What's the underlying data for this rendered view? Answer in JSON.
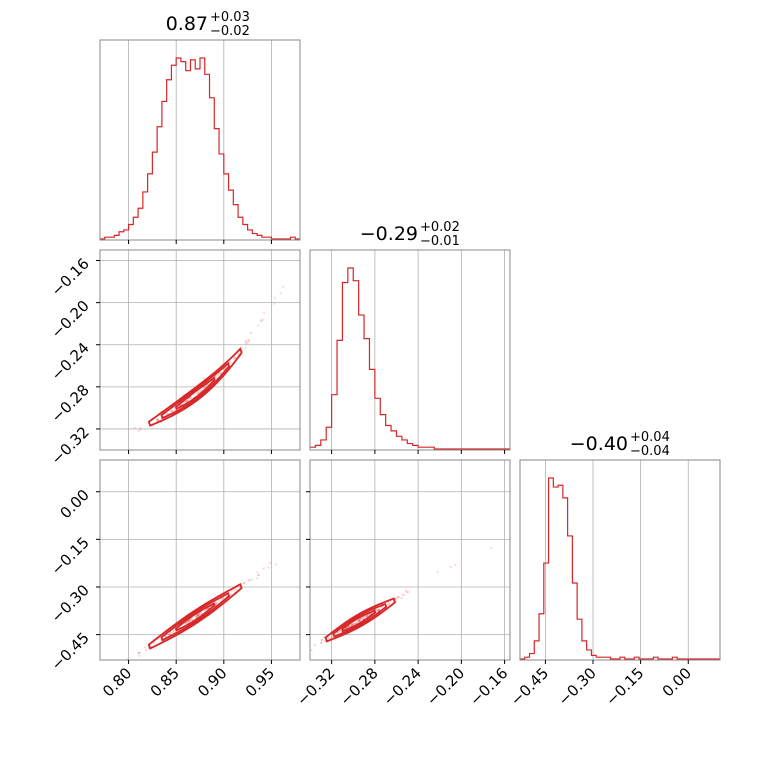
{
  "chart_data": {
    "type": "corner",
    "color": "#d62728",
    "grid": true,
    "titles": [
      {
        "value": "0.87",
        "plus": "+0.03",
        "minus": "−0.02"
      },
      {
        "value": "−0.29",
        "plus": "+0.02",
        "minus": "−0.01"
      },
      {
        "value": "−0.40",
        "plus": "+0.04",
        "minus": "−0.04"
      }
    ],
    "params": [
      {
        "range": [
          0.77,
          0.98
        ],
        "ticks": [
          0.8,
          0.85,
          0.9,
          0.95
        ],
        "tick_labels": [
          "0.80",
          "0.85",
          "0.90",
          "0.95"
        ],
        "hist_edges": [
          0.77,
          0.775,
          0.78,
          0.785,
          0.79,
          0.795,
          0.8,
          0.805,
          0.81,
          0.815,
          0.82,
          0.825,
          0.83,
          0.835,
          0.84,
          0.845,
          0.85,
          0.855,
          0.86,
          0.865,
          0.87,
          0.875,
          0.88,
          0.885,
          0.89,
          0.895,
          0.9,
          0.905,
          0.91,
          0.915,
          0.92,
          0.925,
          0.93,
          0.935,
          0.94,
          0.945,
          0.95,
          0.955,
          0.96,
          0.965,
          0.97,
          0.975,
          0.98
        ],
        "hist_counts": [
          0,
          1,
          1,
          2,
          4,
          5,
          8,
          12,
          17,
          26,
          36,
          48,
          62,
          76,
          88,
          96,
          100,
          98,
          93,
          99,
          94,
          100,
          91,
          78,
          61,
          47,
          36,
          27,
          19,
          12,
          8,
          5,
          3,
          2,
          1,
          1,
          0,
          0,
          0,
          0,
          1,
          0
        ]
      },
      {
        "range": [
          -0.34,
          -0.15
        ],
        "range_x": [
          -0.34,
          -0.155
        ],
        "ticks": [
          -0.32,
          -0.28,
          -0.24,
          -0.2,
          -0.16
        ],
        "tick_labels": [
          "−0.32",
          "−0.28",
          "−0.24",
          "−0.20",
          "−0.16"
        ],
        "hist_edges": [
          -0.34,
          -0.335,
          -0.33,
          -0.325,
          -0.32,
          -0.315,
          -0.31,
          -0.305,
          -0.3,
          -0.295,
          -0.29,
          -0.285,
          -0.28,
          -0.275,
          -0.27,
          -0.265,
          -0.26,
          -0.255,
          -0.25,
          -0.245,
          -0.24,
          -0.235,
          -0.23,
          -0.225,
          -0.22,
          -0.215,
          -0.21,
          -0.205,
          -0.2,
          -0.195,
          -0.19,
          -0.185,
          -0.18,
          -0.175,
          -0.17,
          -0.165,
          -0.16,
          -0.155
        ],
        "hist_counts": [
          1,
          2,
          5,
          12,
          30,
          60,
          92,
          100,
          93,
          74,
          61,
          44,
          28,
          19,
          13,
          10,
          7,
          5,
          3,
          2,
          1,
          1,
          1,
          0,
          0,
          0,
          0,
          0,
          0,
          0,
          0,
          0,
          0,
          0,
          0,
          0,
          0
        ]
      },
      {
        "range": [
          -0.53,
          0.1
        ],
        "ticks": [
          -0.45,
          -0.3,
          -0.15,
          0.0
        ],
        "tick_labels": [
          "−0.45",
          "−0.30",
          "−0.15",
          "0.00"
        ],
        "hist_edges": [
          -0.53,
          -0.515,
          -0.5,
          -0.485,
          -0.47,
          -0.455,
          -0.44,
          -0.425,
          -0.41,
          -0.395,
          -0.38,
          -0.365,
          -0.35,
          -0.335,
          -0.32,
          -0.305,
          -0.29,
          -0.275,
          -0.26,
          -0.245,
          -0.23,
          -0.215,
          -0.2,
          -0.185,
          -0.17,
          -0.155,
          -0.14,
          -0.125,
          -0.11,
          -0.095,
          -0.08,
          -0.065,
          -0.05,
          -0.035,
          -0.02,
          -0.005,
          0.01,
          0.025,
          0.04,
          0.055,
          0.07,
          0.085,
          0.1
        ],
        "hist_counts": [
          0,
          1,
          3,
          10,
          25,
          53,
          100,
          95,
          96,
          89,
          68,
          42,
          22,
          10,
          5,
          2,
          1,
          1,
          1,
          0,
          0,
          1,
          0,
          0,
          1,
          0,
          0,
          0,
          1,
          0,
          0,
          0,
          1,
          0,
          0,
          0,
          0,
          0,
          0,
          0,
          0,
          0
        ]
      }
    ]
  }
}
